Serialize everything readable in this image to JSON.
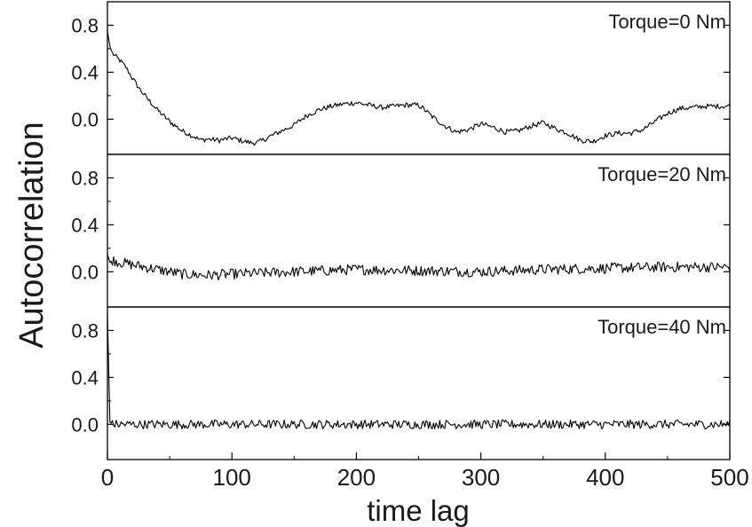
{
  "chart_data": {
    "type": "line",
    "xlabel": "time lag",
    "ylabel": "Autocorrelation",
    "xlim": [
      0,
      500
    ],
    "xticks": [
      "0",
      "100",
      "200",
      "300",
      "400",
      "500"
    ],
    "line_color": "#000000",
    "grid": false,
    "panels": [
      {
        "label": "Torque=0 Nm",
        "ylim": [
          -0.3,
          1.0
        ],
        "yticks": [
          "0.0",
          "0.4",
          "0.8"
        ],
        "x": [
          0,
          2,
          4,
          6,
          8,
          10,
          15,
          20,
          25,
          30,
          40,
          50,
          60,
          70,
          75,
          80,
          90,
          100,
          110,
          115,
          120,
          125,
          130,
          140,
          150,
          160,
          170,
          180,
          190,
          200,
          210,
          220,
          230,
          240,
          250,
          255,
          260,
          270,
          280,
          290,
          300,
          310,
          320,
          330,
          340,
          350,
          360,
          370,
          380,
          390,
          400,
          410,
          420,
          430,
          440,
          450,
          460,
          470,
          480,
          490,
          500
        ],
        "y": [
          0.75,
          0.62,
          0.56,
          0.54,
          0.52,
          0.5,
          0.44,
          0.35,
          0.27,
          0.2,
          0.08,
          -0.02,
          -0.1,
          -0.15,
          -0.18,
          -0.17,
          -0.18,
          -0.16,
          -0.19,
          -0.2,
          -0.2,
          -0.18,
          -0.15,
          -0.1,
          -0.05,
          0.03,
          0.08,
          0.11,
          0.13,
          0.14,
          0.12,
          0.1,
          0.11,
          0.12,
          0.12,
          0.08,
          0.03,
          -0.05,
          -0.11,
          -0.09,
          -0.04,
          -0.07,
          -0.11,
          -0.1,
          -0.06,
          -0.03,
          -0.08,
          -0.12,
          -0.18,
          -0.19,
          -0.14,
          -0.12,
          -0.12,
          -0.09,
          -0.02,
          0.05,
          0.09,
          0.1,
          0.11,
          0.11,
          0.11
        ]
      },
      {
        "label": "Torque=20 Nm",
        "ylim": [
          -0.3,
          1.0
        ],
        "yticks": [
          "0.0",
          "0.4",
          "0.8"
        ],
        "x": [
          0,
          2,
          4,
          10,
          20,
          40,
          60,
          80,
          100,
          150,
          200,
          250,
          300,
          350,
          400,
          450,
          500
        ],
        "y": [
          0.15,
          0.08,
          0.1,
          0.08,
          0.06,
          0.02,
          -0.02,
          -0.03,
          -0.02,
          0.0,
          0.02,
          0.01,
          0.0,
          0.02,
          0.03,
          0.04,
          0.04
        ]
      },
      {
        "label": "Torque=40 Nm",
        "ylim": [
          -0.3,
          1.0
        ],
        "yticks": [
          "0.0",
          "0.4",
          "0.8"
        ],
        "x": [
          0,
          2,
          4,
          50,
          100,
          150,
          200,
          250,
          300,
          350,
          400,
          450,
          500
        ],
        "y": [
          0.95,
          0.02,
          0.0,
          0.0,
          0.0,
          0.0,
          0.0,
          0.0,
          0.0,
          0.0,
          0.0,
          0.0,
          0.0
        ]
      }
    ]
  }
}
